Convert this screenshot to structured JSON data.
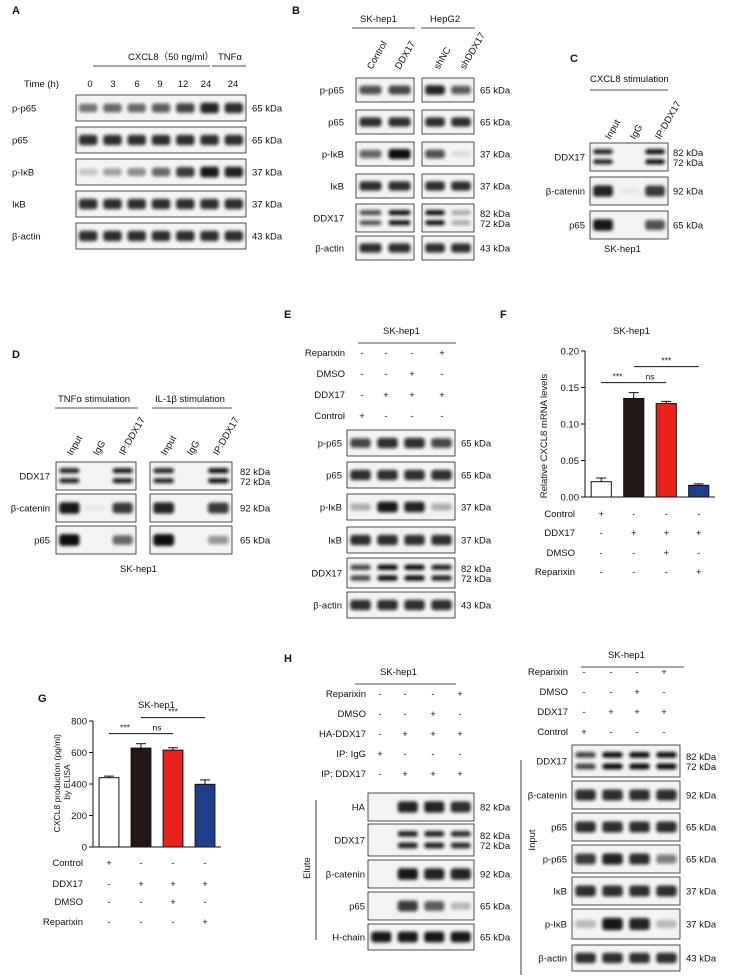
{
  "panels": {
    "A": "A",
    "B": "B",
    "C": "C",
    "D": "D",
    "E": "E",
    "F": "F",
    "G": "G",
    "H": "H"
  },
  "cell_line": "SK-hep1",
  "hepg2": "HepG2",
  "kda": {
    "k82": "82 kDa",
    "k72": "72 kDa",
    "k65": "65 kDa",
    "k43": "43 kDa",
    "k37": "37 kDa",
    "k92": "92 kDa"
  },
  "proteins": {
    "pp65": "p-p65",
    "p65": "p65",
    "pikb": "p-IκB",
    "ikb": "IκB",
    "bactin": "β-actin",
    "ddx17": "DDX17",
    "bcat": "β-catenin",
    "ha": "HA",
    "hchain": "H-chain"
  },
  "conds": {
    "control": "Control",
    "ddx17": "DDX17",
    "dmso": "DMSO",
    "reparixin": "Reparixin",
    "ha_ddx17": "HA-DDX17",
    "ip_igg": "IP: IgG",
    "ip_ddx17": "IP: DDX17"
  },
  "lanes": {
    "input": "Input",
    "igg": "IgG",
    "ipddx17": "IP:DDX17",
    "shnc": "shNC",
    "shddx17": "shDDX17"
  },
  "side": {
    "elute": "Elute",
    "input": "Input"
  },
  "panelA": {
    "stim": "CXCL8（50 ng/ml）",
    "tnf": "TNFα",
    "time_label": "Time (h)",
    "times": [
      "0",
      "3",
      "6",
      "9",
      "12",
      "24",
      "24"
    ]
  },
  "panelC": {
    "stim": "CXCL8 stimulation"
  },
  "panelD": {
    "tnf": "TNFα stimulation",
    "il1": "IL-1β stimulation"
  },
  "signs": {
    "plus": "+",
    "minus": "-"
  },
  "chart_data": [
    {
      "panel": "F",
      "type": "bar",
      "title": "SK-hep1",
      "ylabel": "Relative CXCL8 mRNA levels",
      "ylim": [
        0,
        0.2
      ],
      "yticks": [
        "0.00",
        "0.05",
        "0.10",
        "0.15",
        "0.20"
      ],
      "categories": [
        "Control",
        "DDX17",
        "DDX17+DMSO",
        "DDX17+Reparixin"
      ],
      "values": [
        0.021,
        0.135,
        0.128,
        0.016
      ],
      "errors": [
        0.005,
        0.008,
        0.003,
        0.002
      ],
      "colors": [
        "#ffffff",
        "#231815",
        "#e8231f",
        "#1e3e8c"
      ],
      "significance": [
        {
          "text": "***",
          "between": [
            0,
            1
          ]
        },
        {
          "text": "ns",
          "between": [
            1,
            2
          ]
        },
        {
          "text": "***",
          "between": [
            1,
            3
          ]
        }
      ]
    },
    {
      "panel": "G",
      "type": "bar",
      "title": "SK-hep1",
      "ylabel": "CXCL8 production (pg/ml) by ELISA",
      "ylim": [
        0,
        800
      ],
      "yticks": [
        "0",
        "200",
        "400",
        "600",
        "800"
      ],
      "categories": [
        "Control",
        "DDX17",
        "DDX17+DMSO",
        "DDX17+Reparixin"
      ],
      "values": [
        440,
        628,
        615,
        398
      ],
      "errors": [
        10,
        28,
        15,
        28
      ],
      "colors": [
        "#ffffff",
        "#231815",
        "#e8231f",
        "#1e3e8c"
      ],
      "significance": [
        {
          "text": "***",
          "between": [
            0,
            1
          ]
        },
        {
          "text": "ns",
          "between": [
            1,
            2
          ]
        },
        {
          "text": "***",
          "between": [
            1,
            3
          ]
        }
      ]
    }
  ]
}
